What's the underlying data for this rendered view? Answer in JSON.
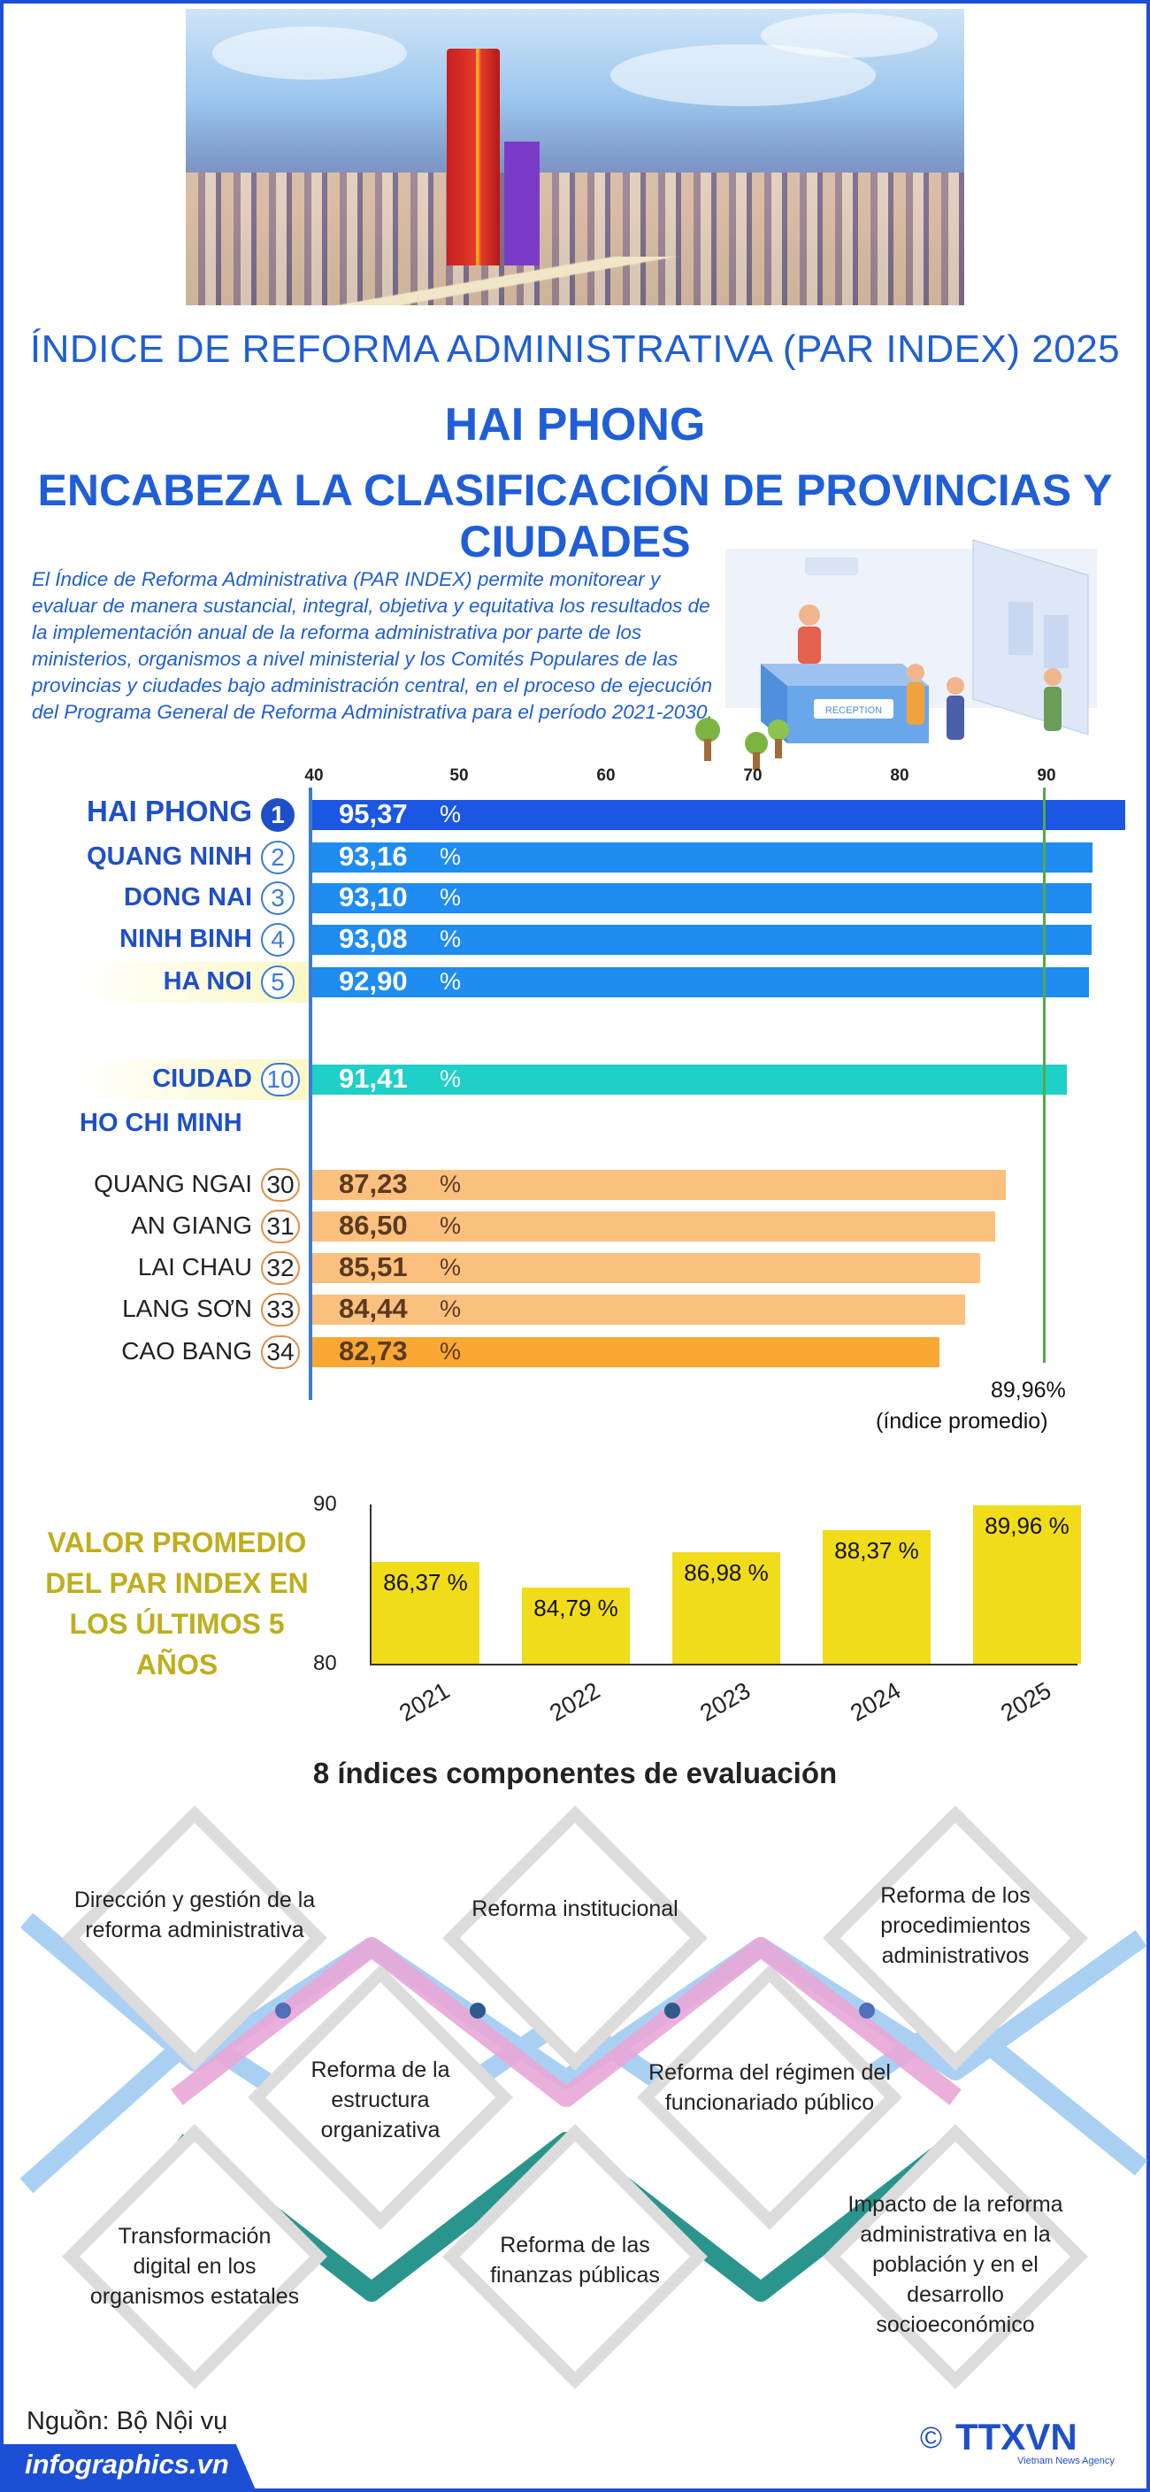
{
  "header": {
    "title_top": "ÍNDICE DE REFORMA ADMINISTRATIVA (PAR INDEX) 2025",
    "title_main": "HAI PHONG",
    "title_sub": "ENCABEZA LA CLASIFICACIÓN DE PROVINCIAS Y CIUDADES"
  },
  "intro": "El Índice de Reforma Administrativa (PAR INDEX) permite monitorear y evaluar de manera sustancial, integral, objetiva y equitativa los resultados de la implementación anual de la reforma administrativa por parte de los ministerios, organismos a nivel ministerial y los Comités Populares de las provincias y ciudades bajo administración central, en el proceso de ejecución del Programa General de Reforma Administrativa para el período 2021-2030.",
  "scene_text": "RECEPTION",
  "colors": {
    "primary_blue": "#1f5ed6",
    "top_bar": "#1b57e3",
    "mid_bar": "#1e8cf0",
    "cyan_bar": "#1ed0c8",
    "peach_bar": "#fcc07e",
    "orange_bar": "#f8a833",
    "yellow_bar": "#f1dc1a",
    "avg_line": "#57a84a"
  },
  "chart_data": [
    {
      "type": "bar",
      "orientation": "horizontal",
      "title": "",
      "xlim": [
        40,
        95.37
      ],
      "x_ticks": [
        "40",
        "50",
        "60",
        "70",
        "80",
        "90"
      ],
      "percent_sign": "%",
      "reference": {
        "value": 89.96,
        "value_label": "89,96%",
        "label": "(índice promedio)"
      },
      "categories": [
        {
          "name": "HAI PHONG",
          "rank": "1",
          "value": 95.37,
          "label": "95,37"
        },
        {
          "name": "QUANG NINH",
          "rank": "2",
          "value": 93.16,
          "label": "93,16"
        },
        {
          "name": "DONG NAI",
          "rank": "3",
          "value": 93.1,
          "label": "93,10"
        },
        {
          "name": "NINH BINH",
          "rank": "4",
          "value": 93.08,
          "label": "93,08"
        },
        {
          "name": "HA NOI",
          "rank": "5",
          "value": 92.9,
          "label": "92,90"
        },
        {
          "name": "CIUDAD",
          "name_line2": "HO CHI MINH",
          "rank": "10",
          "value": 91.41,
          "label": "91,41"
        },
        {
          "name": "QUANG NGAI",
          "rank": "30",
          "value": 87.23,
          "label": "87,23"
        },
        {
          "name": "AN GIANG",
          "rank": "31",
          "value": 86.5,
          "label": "86,50"
        },
        {
          "name": "LAI CHAU",
          "rank": "32",
          "value": 85.51,
          "label": "85,51"
        },
        {
          "name": "LANG SƠN",
          "rank": "33",
          "value": 84.44,
          "label": "84,44"
        },
        {
          "name": "CAO BANG",
          "rank": "34",
          "value": 82.73,
          "label": "82,73"
        }
      ]
    },
    {
      "type": "bar",
      "title": "VALOR PROMEDIO DEL PAR INDEX EN LOS ÚLTIMOS 5 AÑOS",
      "ylim": [
        80,
        90
      ],
      "y_ticks": [
        "80",
        "90"
      ],
      "categories": [
        "2021",
        "2022",
        "2023",
        "2024",
        "2025"
      ],
      "values": [
        86.37,
        84.79,
        86.98,
        88.37,
        89.96
      ],
      "labels": [
        "86,37 %",
        "84,79 %",
        "86,98 %",
        "88,37 %",
        "89,96 %"
      ]
    }
  ],
  "components": {
    "title": "8 índices componentes de evaluación",
    "items": [
      "Dirección y gestión de la reforma administrativa",
      "Reforma institucional",
      "Reforma de los procedimientos administrativos",
      "Reforma de la estructura organizativa",
      "Reforma del régimen del funcionariado público",
      "Transformación digital en los organismos estatales",
      "Reforma de las finanzas públicas",
      "Impacto de la reforma administrativa en la población y en el desarrollo socioeconómico"
    ]
  },
  "footer": {
    "source": "Nguồn: Bộ Nội vụ",
    "site": "infographics.vn",
    "copyright": "©",
    "logo_text": "TTXVN",
    "logo_sub": "Vietnam News Agency"
  }
}
